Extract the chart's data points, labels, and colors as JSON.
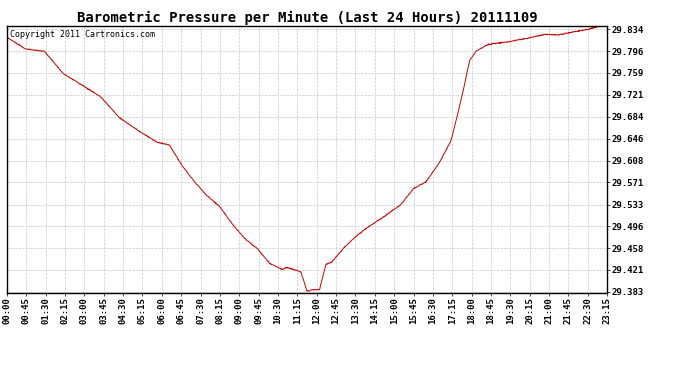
{
  "title": "Barometric Pressure per Minute (Last 24 Hours) 20111109",
  "copyright_text": "Copyright 2011 Cartronics.com",
  "line_color": "#cc0000",
  "background_color": "#ffffff",
  "grid_color": "#c8c8c8",
  "x_tick_labels": [
    "00:00",
    "00:45",
    "01:30",
    "02:15",
    "03:00",
    "03:45",
    "04:30",
    "05:15",
    "06:00",
    "06:45",
    "07:30",
    "08:15",
    "09:00",
    "09:45",
    "10:30",
    "11:15",
    "12:00",
    "12:45",
    "13:30",
    "14:15",
    "15:00",
    "15:45",
    "16:30",
    "17:15",
    "18:00",
    "18:45",
    "19:30",
    "20:15",
    "21:00",
    "21:45",
    "22:30",
    "23:15"
  ],
  "y_tick_labels": [
    "29.383",
    "29.421",
    "29.458",
    "29.496",
    "29.533",
    "29.571",
    "29.608",
    "29.646",
    "29.684",
    "29.721",
    "29.759",
    "29.796",
    "29.834"
  ],
  "y_min": 29.383,
  "y_max": 29.834,
  "title_fontsize": 10,
  "copyright_fontsize": 6,
  "tick_fontsize": 6.5,
  "keypoints": [
    [
      0,
      29.82
    ],
    [
      45,
      29.8
    ],
    [
      90,
      29.796
    ],
    [
      135,
      29.758
    ],
    [
      180,
      29.738
    ],
    [
      225,
      29.718
    ],
    [
      270,
      29.682
    ],
    [
      315,
      29.66
    ],
    [
      360,
      29.64
    ],
    [
      390,
      29.635
    ],
    [
      420,
      29.6
    ],
    [
      450,
      29.572
    ],
    [
      480,
      29.548
    ],
    [
      510,
      29.53
    ],
    [
      540,
      29.5
    ],
    [
      570,
      29.475
    ],
    [
      600,
      29.458
    ],
    [
      630,
      29.432
    ],
    [
      660,
      29.422
    ],
    [
      672,
      29.425
    ],
    [
      690,
      29.421
    ],
    [
      705,
      29.418
    ],
    [
      720,
      29.384
    ],
    [
      735,
      29.387
    ],
    [
      750,
      29.387
    ],
    [
      765,
      29.43
    ],
    [
      780,
      29.435
    ],
    [
      810,
      29.46
    ],
    [
      840,
      29.48
    ],
    [
      870,
      29.496
    ],
    [
      900,
      29.51
    ],
    [
      945,
      29.533
    ],
    [
      975,
      29.56
    ],
    [
      1005,
      29.572
    ],
    [
      1035,
      29.602
    ],
    [
      1065,
      29.642
    ],
    [
      1080,
      29.684
    ],
    [
      1095,
      29.73
    ],
    [
      1110,
      29.78
    ],
    [
      1125,
      29.796
    ],
    [
      1140,
      29.802
    ],
    [
      1155,
      29.808
    ],
    [
      1200,
      29.812
    ],
    [
      1260,
      29.82
    ],
    [
      1290,
      29.825
    ],
    [
      1320,
      29.824
    ],
    [
      1350,
      29.828
    ],
    [
      1380,
      29.832
    ],
    [
      1395,
      29.834
    ],
    [
      1415,
      29.838
    ],
    [
      1440,
      29.84
    ]
  ]
}
